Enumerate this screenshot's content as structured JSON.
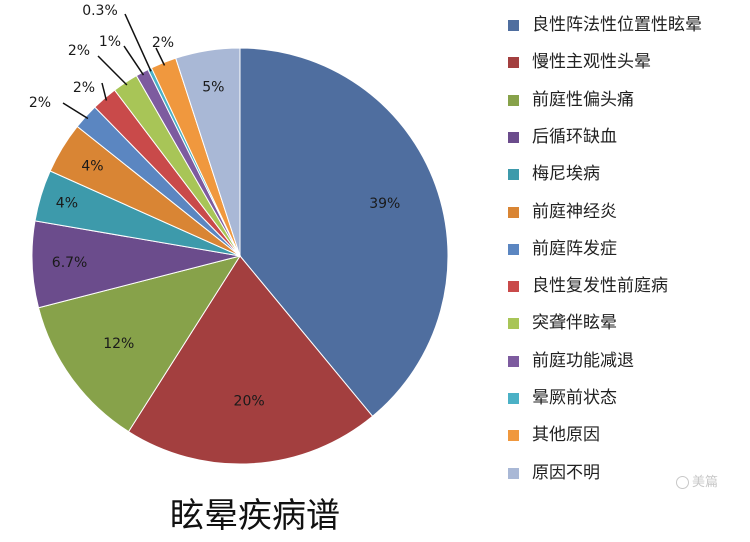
{
  "chart_data": {
    "type": "pie",
    "title": "眩晕疾病谱",
    "start_angle_deg": 0,
    "direction": "clockwise",
    "legend_position": "right",
    "slices": [
      {
        "name": "良性阵法性位置性眩晕",
        "value": 39,
        "label": "39%",
        "color": "#4f6e9f"
      },
      {
        "name": "慢性主观性头晕",
        "value": 20,
        "label": "20%",
        "color": "#a33f3f"
      },
      {
        "name": "前庭性偏头痛",
        "value": 12,
        "label": "12%",
        "color": "#87a24a"
      },
      {
        "name": "后循环缺血",
        "value": 6.7,
        "label": "6.7%",
        "color": "#6b4c8c"
      },
      {
        "name": "梅尼埃病",
        "value": 4,
        "label": "4%",
        "color": "#3d9aab"
      },
      {
        "name": "前庭神经炎",
        "value": 4,
        "label": "4%",
        "color": "#d98534"
      },
      {
        "name": "前庭阵发症",
        "value": 2,
        "label": "2%",
        "color": "#5b86c1"
      },
      {
        "name": "良性复发性前庭病",
        "value": 2,
        "label": "2%",
        "color": "#c94a4a"
      },
      {
        "name": "突聋伴眩晕",
        "value": 2,
        "label": "2%",
        "color": "#a8c557"
      },
      {
        "name": "前庭功能减退",
        "value": 1,
        "label": "1%",
        "color": "#7d5b9f"
      },
      {
        "name": "晕厥前状态",
        "value": 0.3,
        "label": "0.3%",
        "color": "#4bb1c6"
      },
      {
        "name": "其他原因",
        "value": 2,
        "label": "2%",
        "color": "#f0983e"
      },
      {
        "name": "原因不明",
        "value": 5,
        "label": "5%",
        "color": "#a9b8d6"
      }
    ]
  },
  "watermark": "美篇"
}
